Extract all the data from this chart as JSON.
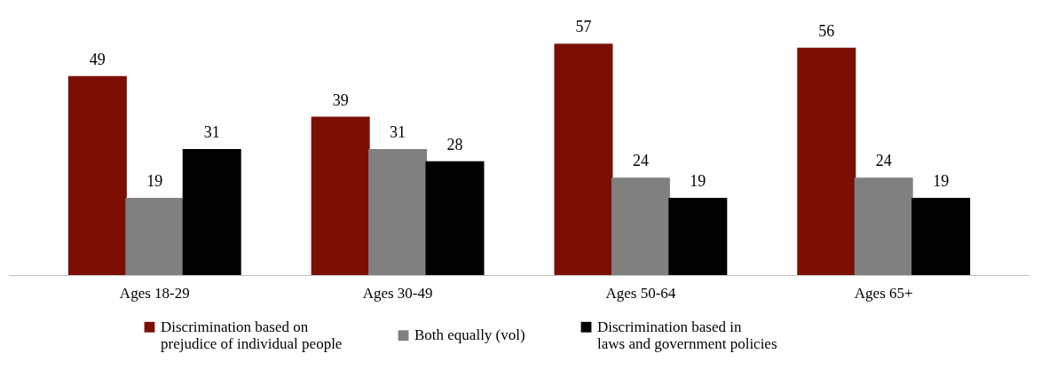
{
  "chart_data": {
    "type": "bar",
    "categories": [
      "Ages 18-29",
      "Ages 30-49",
      "Ages 50-64",
      "Ages 65+"
    ],
    "series": [
      {
        "name": "Discrimination based on prejudice of individual people",
        "color": "#7b0f03",
        "values": [
          49,
          39,
          57,
          56
        ]
      },
      {
        "name": "Both equally (vol)",
        "color": "#808080",
        "values": [
          19,
          31,
          24,
          24
        ]
      },
      {
        "name": "Discrimination based in laws and government policies",
        "color": "#000000",
        "values": [
          31,
          28,
          19,
          19
        ]
      }
    ],
    "data_labels": true,
    "legend": "bottom"
  }
}
